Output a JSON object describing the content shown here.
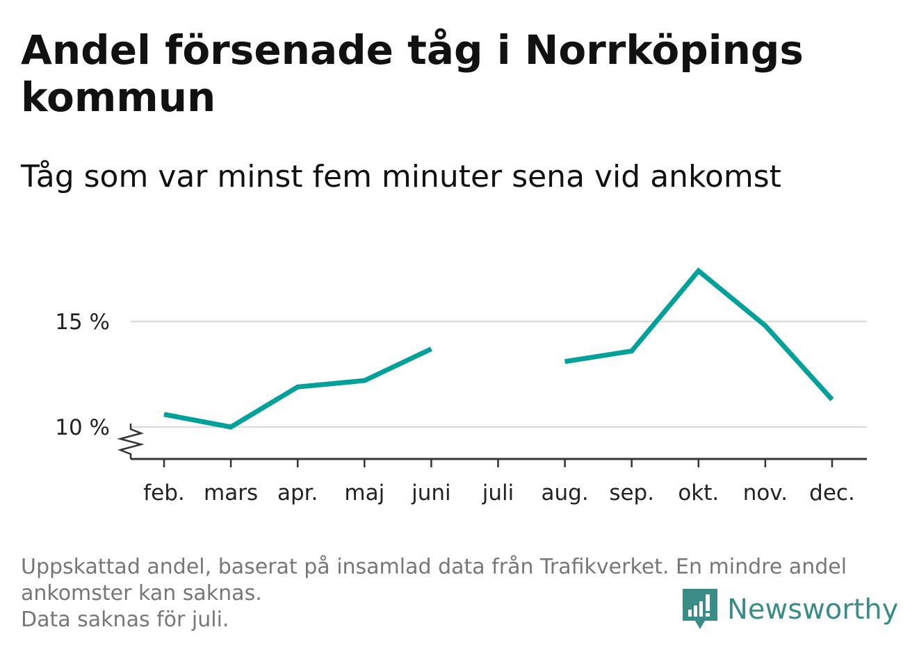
{
  "title": "Andel försenade tåg i Norrköpings kommun",
  "subtitle": "Tåg som var minst fem minuter sena vid ankomst",
  "footnote": {
    "line1": "Uppskattad andel, baserat på insamlad data från Trafikverket. En mindre andel",
    "line2": "ankomster kan saknas.",
    "line3": "Data saknas för juli."
  },
  "brand": {
    "name": "Newsworthy",
    "color": "#3a8c86",
    "icon": "bar-chart-speech-bubble-icon"
  },
  "colors": {
    "line": "#00a19a",
    "grid": "#dddddd",
    "axis": "#333333"
  },
  "chart_data": {
    "type": "line",
    "title": "Andel försenade tåg i Norrköpings kommun",
    "subtitle": "Tåg som var minst fem minuter sena vid ankomst",
    "categories": [
      "feb.",
      "mars",
      "apr.",
      "maj",
      "juni",
      "juli",
      "aug.",
      "sep.",
      "okt.",
      "nov.",
      "dec."
    ],
    "values": [
      10.6,
      10.0,
      11.9,
      12.2,
      13.7,
      null,
      13.1,
      13.6,
      17.4,
      14.8,
      11.3
    ],
    "y_ticks": [
      10,
      15
    ],
    "y_tick_labels": [
      "10 %",
      "15 %"
    ],
    "ylim": [
      8.5,
      18
    ],
    "y_axis_break": true,
    "grid": "horizontal",
    "xlabel": "",
    "ylabel": ""
  }
}
